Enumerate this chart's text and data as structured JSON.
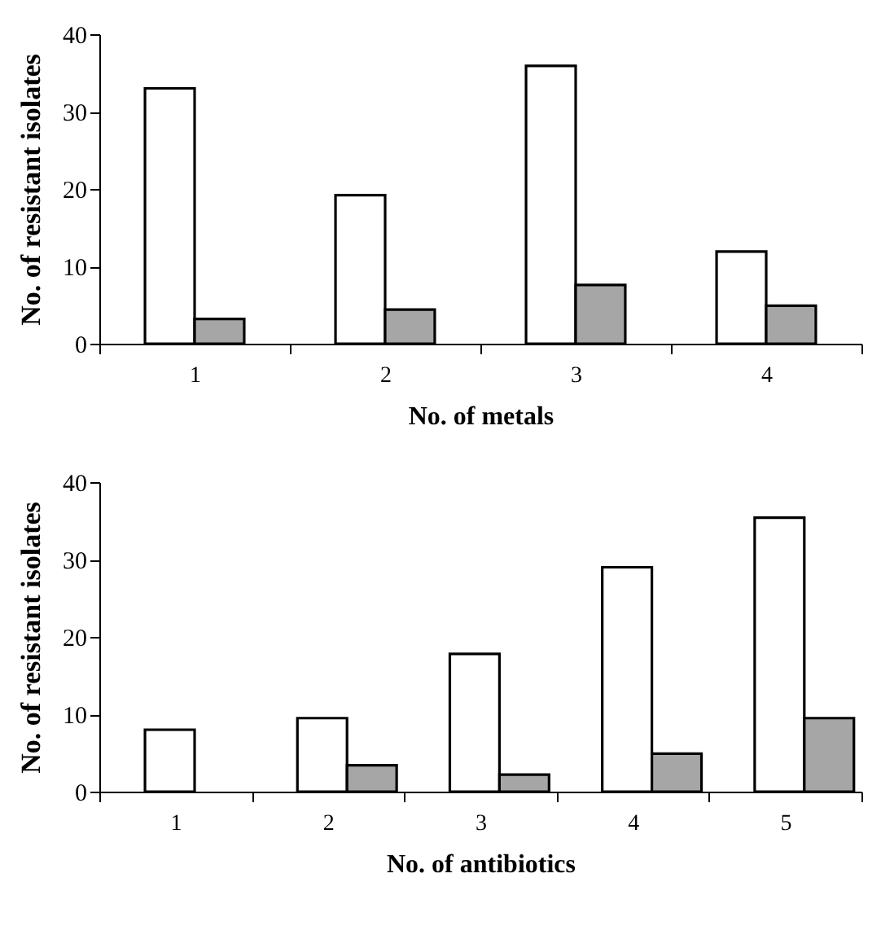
{
  "chart_data": [
    {
      "type": "bar",
      "xlabel": "No. of metals",
      "ylabel": "No. of resistant isolates",
      "categories": [
        "1",
        "2",
        "3",
        "4"
      ],
      "ylim": [
        0,
        40
      ],
      "yticks": [
        0,
        10,
        20,
        30,
        40
      ],
      "grid": false,
      "legend": false,
      "series": [
        {
          "color": "#ffffff",
          "values": [
            33,
            19.2,
            35.9,
            11.9
          ]
        },
        {
          "color": "#a6a6a6",
          "values": [
            3.2,
            4.4,
            7.6,
            4.9
          ]
        }
      ]
    },
    {
      "type": "bar",
      "xlabel": "No. of antibiotics",
      "ylabel": "No. of resistant isolates",
      "categories": [
        "1",
        "2",
        "3",
        "4",
        "5"
      ],
      "ylim": [
        0,
        40
      ],
      "yticks": [
        0,
        10,
        20,
        30,
        40
      ],
      "grid": false,
      "legend": false,
      "series": [
        {
          "color": "#ffffff",
          "values": [
            8,
            9.5,
            17.8,
            29,
            35.4
          ]
        },
        {
          "color": "#a6a6a6",
          "values": [
            null,
            3.4,
            2.2,
            4.9,
            9.5
          ]
        }
      ]
    }
  ]
}
